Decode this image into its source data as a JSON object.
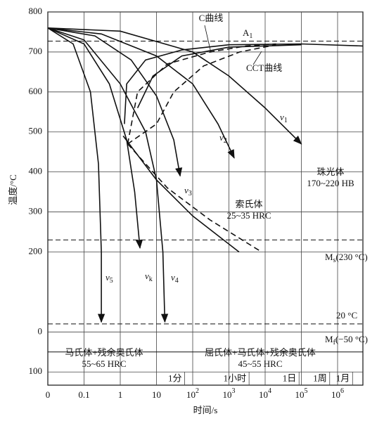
{
  "chart_data": {
    "type": "line",
    "xlabel": "时间/s",
    "ylabel": "温度/°C",
    "xscale": "log",
    "grid": true,
    "xlim": [
      0.01,
      5000000
    ],
    "ylim": [
      -133,
      800
    ],
    "xticks": [
      {
        "value": 0.01,
        "label": "0"
      },
      0.1,
      1,
      10,
      {
        "value": 100,
        "label": "10",
        "sup": "2"
      },
      {
        "value": 1000,
        "label": "10",
        "sup": "3"
      },
      {
        "value": 10000,
        "label": "10",
        "sup": "4"
      },
      {
        "value": 100000,
        "label": "10",
        "sup": "5"
      },
      {
        "value": 1000000,
        "label": "10",
        "sup": "6"
      }
    ],
    "yticks": [
      800,
      700,
      600,
      500,
      400,
      300,
      200,
      0,
      {
        "value": -100,
        "label": "100"
      }
    ],
    "time_markers": [
      {
        "value": 60,
        "label": "1分"
      },
      {
        "value": 3600,
        "label": "1小时"
      },
      {
        "value": 86400,
        "label": "1日"
      },
      {
        "value": 604800,
        "label": "1周"
      },
      {
        "value": 2592000,
        "label": "1月"
      }
    ],
    "hlines": [
      {
        "value": 727,
        "style": "dashed"
      },
      {
        "value": 230,
        "style": "dashed"
      },
      {
        "value": 20,
        "style": "dashed"
      },
      {
        "value": -50,
        "style": "solid"
      }
    ],
    "color": "#111111",
    "series": [
      {
        "x": [
          0.01,
          1,
          100,
          1000,
          10000,
          100000
        ],
        "y": [
          760,
          752,
          700,
          640,
          560,
          470
        ],
        "style": "solid",
        "arrow": true
      },
      {
        "x": [
          0.01,
          0.3,
          10,
          100,
          500,
          1400
        ],
        "y": [
          760,
          745,
          690,
          620,
          520,
          435
        ],
        "style": "solid",
        "arrow": true
      },
      {
        "x": [
          0.01,
          0.2,
          2,
          10,
          30,
          45
        ],
        "y": [
          760,
          740,
          680,
          590,
          480,
          390
        ],
        "style": "solid",
        "arrow": true
      },
      {
        "x": [
          0.01,
          0.1,
          1,
          5,
          10,
          15,
          17
        ],
        "y": [
          760,
          730,
          620,
          500,
          380,
          200,
          25
        ],
        "style": "solid",
        "arrow": true
      },
      {
        "x": [
          0.01,
          0.1,
          0.5,
          1.5,
          2.5,
          3.5
        ],
        "y": [
          760,
          720,
          620,
          480,
          350,
          210
        ],
        "style": "solid",
        "arrow": true
      },
      {
        "x": [
          0.01,
          0.05,
          0.15,
          0.25,
          0.3,
          0.3
        ],
        "y": [
          760,
          720,
          600,
          420,
          200,
          25
        ],
        "style": "solid",
        "arrow": true
      },
      {
        "x": [
          1.2,
          10,
          100,
          1900
        ],
        "y": [
          490,
          380,
          290,
          200
        ],
        "style": "solid",
        "arrow": false
      },
      {
        "x": [
          1.6,
          20,
          300,
          8000
        ],
        "y": [
          470,
          360,
          280,
          200
        ],
        "style": "dashed",
        "arrow": false
      },
      {
        "x": [
          1.3,
          1.5,
          5,
          50,
          1000,
          100000,
          5000000
        ],
        "y": [
          520,
          620,
          680,
          705,
          718,
          720,
          715
        ],
        "style": "solid",
        "arrow": false
      },
      {
        "x": [
          3,
          8,
          50,
          1000,
          100000
        ],
        "y": [
          560,
          640,
          690,
          712,
          718
        ],
        "style": "solid",
        "arrow": false
      },
      {
        "x": [
          1.6,
          3,
          20,
          300,
          3000,
          20000
        ],
        "y": [
          470,
          600,
          670,
          700,
          715,
          720
        ],
        "style": "dashed",
        "arrow": false
      },
      {
        "x": [
          1.6,
          10,
          30,
          200,
          2000,
          20000
        ],
        "y": [
          470,
          520,
          600,
          665,
          700,
          718
        ],
        "style": "dashed",
        "arrow": false
      }
    ],
    "annotations": [
      {
        "main": "C曲线"
      },
      {
        "main": "A",
        "sub": "1"
      },
      {
        "main": "CCT曲线"
      },
      {
        "main": "v",
        "sub": "1"
      },
      {
        "main": "v",
        "sub": "2"
      },
      {
        "main": "v",
        "sub": "3"
      },
      {
        "main": "v",
        "sub": "5"
      },
      {
        "main": "v",
        "sub": "k"
      },
      {
        "main": "v",
        "sub": "4"
      },
      {
        "main": "M",
        "sub": "s",
        "rest": "(230 °C)"
      },
      {
        "main": "20 °C"
      },
      {
        "main": "M",
        "sub": "f",
        "rest": "(−50 °C)"
      }
    ],
    "regions": [
      [
        "珠光体",
        "170~220 HB"
      ],
      [
        "索氏体",
        "25~35 HRC"
      ],
      [
        "马氏体+残余奥氏体",
        "55~65 HRC"
      ],
      [
        "屈氏体+马氏体+残余奥氏体",
        "45~55 HRC"
      ]
    ]
  }
}
